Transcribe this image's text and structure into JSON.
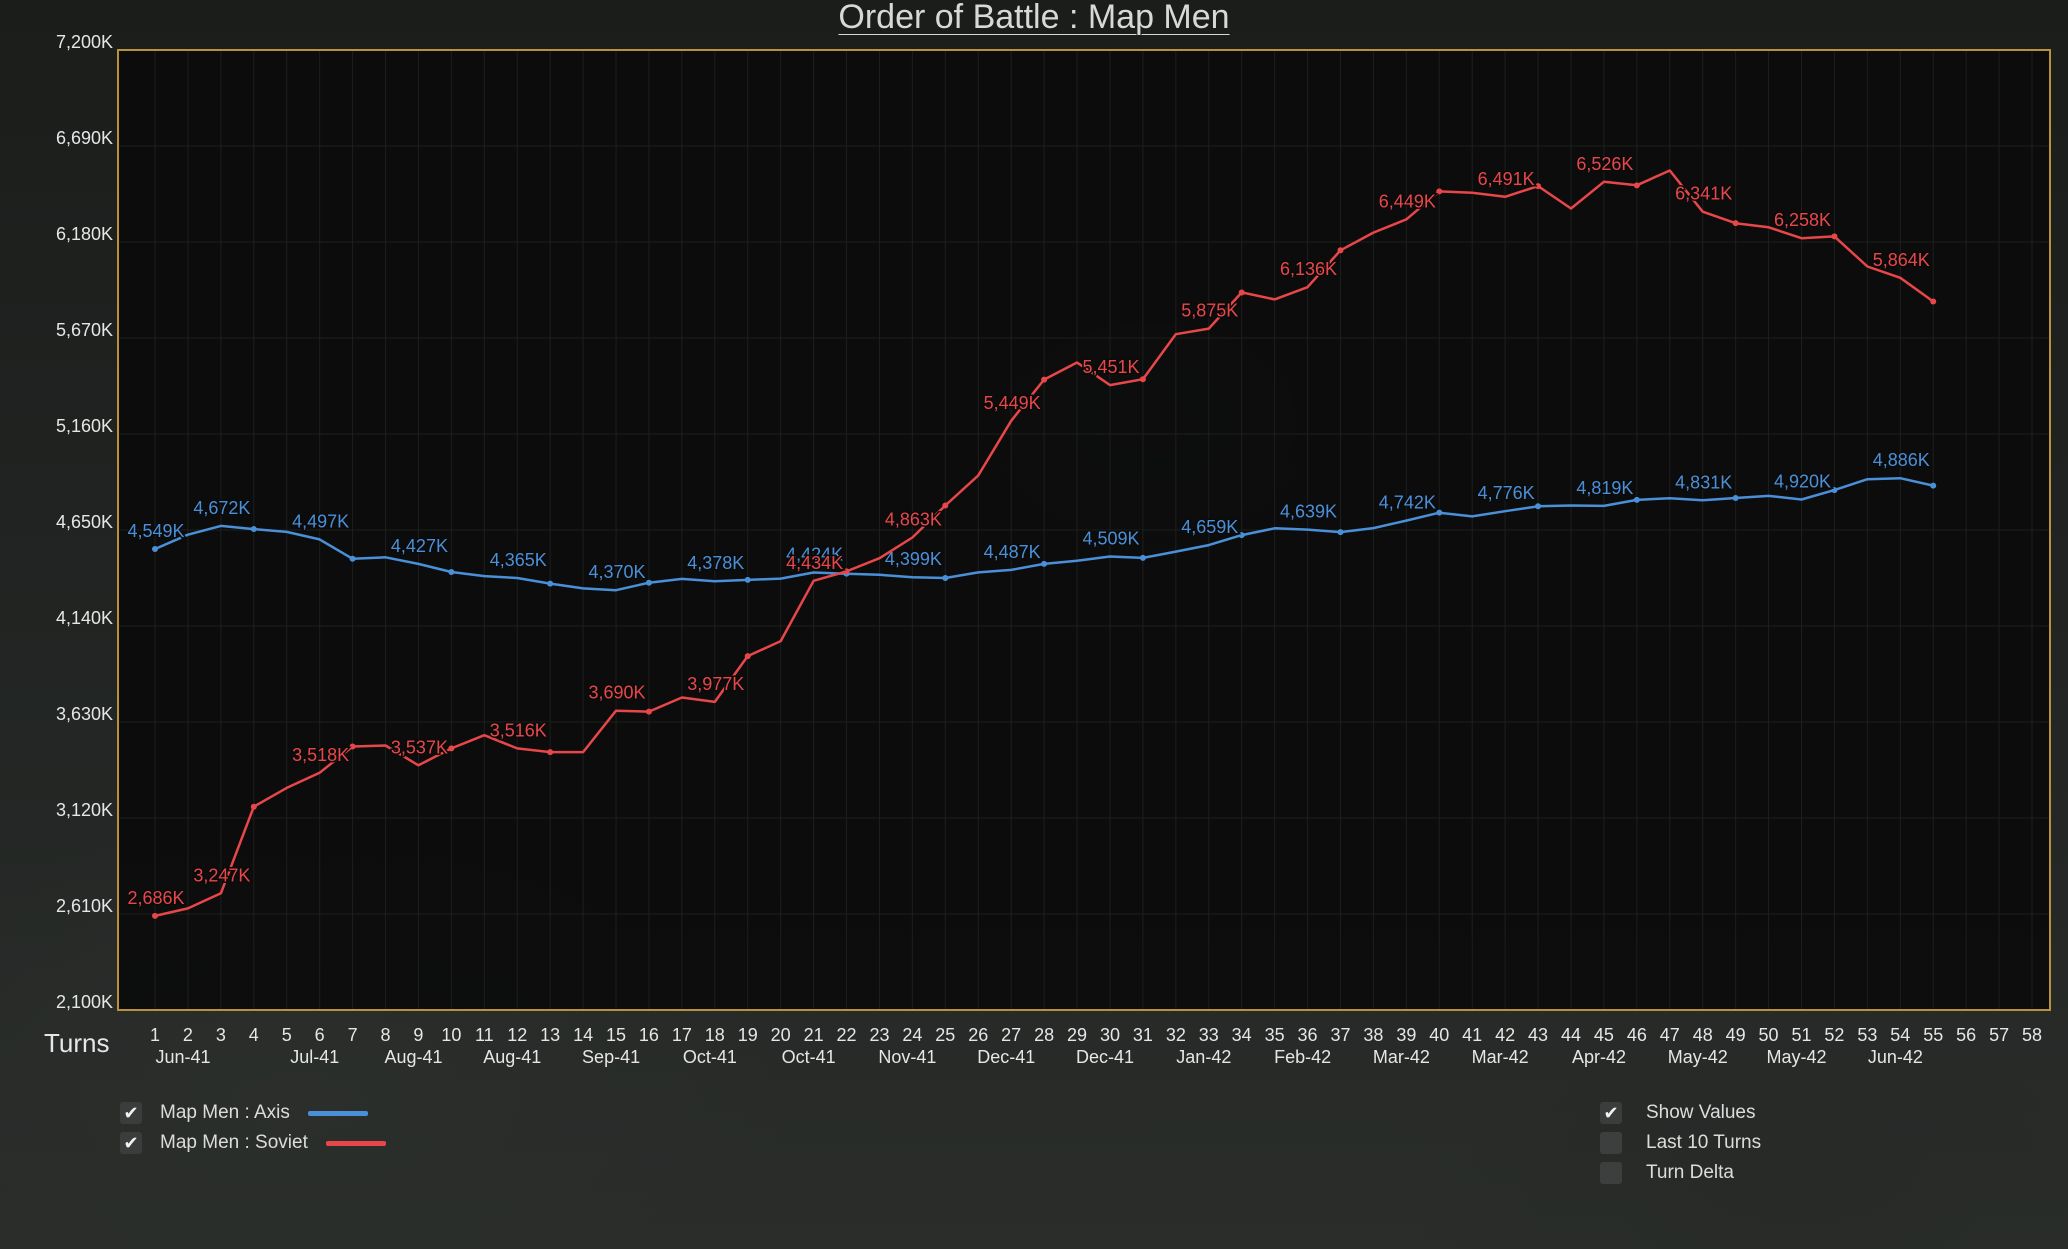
{
  "window": {
    "title": "Order of Battle : Map Men"
  },
  "legend": {
    "items": [
      {
        "label": "Map Men : Axis",
        "checked": true,
        "color": "#4a90d9"
      },
      {
        "label": "Map Men : Soviet",
        "checked": true,
        "color": "#e8474a"
      }
    ]
  },
  "options": {
    "show_values": {
      "label": "Show Values",
      "checked": true
    },
    "last_10_turns": {
      "label": "Last 10 Turns",
      "checked": false
    },
    "turn_delta": {
      "label": "Turn Delta",
      "checked": false
    }
  },
  "chart_data": {
    "type": "line",
    "title": "Order of Battle : Map Men",
    "xlabel": "Turns",
    "ylabel": "",
    "ylim": [
      2100,
      7200
    ],
    "xlim": [
      1,
      58
    ],
    "grid": true,
    "y_ticks": [
      "7,200K",
      "6,690K",
      "6,180K",
      "5,670K",
      "5,160K",
      "4,650K",
      "4,140K",
      "3,630K",
      "3,120K",
      "2,610K",
      "2,100K"
    ],
    "y_tick_values": [
      7200,
      6690,
      6180,
      5670,
      5160,
      4650,
      4140,
      3630,
      3120,
      2610,
      2100
    ],
    "turns": [
      1,
      2,
      3,
      4,
      5,
      6,
      7,
      8,
      9,
      10,
      11,
      12,
      13,
      14,
      15,
      16,
      17,
      18,
      19,
      20,
      21,
      22,
      23,
      24,
      25,
      26,
      27,
      28,
      29,
      30,
      31,
      32,
      33,
      34,
      35,
      36,
      37,
      38,
      39,
      40,
      41,
      42,
      43,
      44,
      45,
      46,
      47,
      48,
      49,
      50,
      51,
      52,
      53,
      54,
      55,
      56,
      57,
      58
    ],
    "dates": [
      {
        "turn": 1,
        "label": "Jun-41"
      },
      {
        "turn": 5,
        "label": "Jul-41"
      },
      {
        "turn": 8,
        "label": "Aug-41"
      },
      {
        "turn": 11,
        "label": "Aug-41"
      },
      {
        "turn": 14,
        "label": "Sep-41"
      },
      {
        "turn": 17,
        "label": "Oct-41"
      },
      {
        "turn": 20,
        "label": "Oct-41"
      },
      {
        "turn": 23,
        "label": "Nov-41"
      },
      {
        "turn": 26,
        "label": "Dec-41"
      },
      {
        "turn": 29,
        "label": "Dec-41"
      },
      {
        "turn": 32,
        "label": "Jan-42"
      },
      {
        "turn": 35,
        "label": "Feb-42"
      },
      {
        "turn": 38,
        "label": "Mar-42"
      },
      {
        "turn": 41,
        "label": "Mar-42"
      },
      {
        "turn": 44,
        "label": "Apr-42"
      },
      {
        "turn": 47,
        "label": "May-42"
      },
      {
        "turn": 50,
        "label": "May-42"
      },
      {
        "turn": 53,
        "label": "Jun-42"
      }
    ],
    "series": [
      {
        "name": "Map Men : Axis",
        "color": "#4a90d9",
        "x": [
          1,
          2,
          3,
          4,
          5,
          6,
          7,
          8,
          9,
          10,
          11,
          12,
          13,
          14,
          15,
          16,
          17,
          18,
          19,
          20,
          21,
          22,
          23,
          24,
          25,
          26,
          27,
          28,
          29,
          30,
          31,
          32,
          33,
          34,
          35,
          36,
          37,
          38,
          39,
          40,
          41,
          42,
          43,
          44,
          45,
          46,
          47,
          48,
          49,
          50,
          51,
          52,
          53,
          54,
          55
        ],
        "values": [
          4549,
          4625,
          4672,
          4655,
          4640,
          4600,
          4497,
          4505,
          4470,
          4427,
          4405,
          4395,
          4365,
          4340,
          4330,
          4370,
          4390,
          4378,
          4385,
          4392,
          4424,
          4418,
          4412,
          4399,
          4395,
          4425,
          4438,
          4470,
          4487,
          4509,
          4502,
          4535,
          4570,
          4623,
          4659,
          4652,
          4639,
          4660,
          4700,
          4742,
          4722,
          4750,
          4776,
          4780,
          4778,
          4810,
          4819,
          4808,
          4820,
          4831,
          4812,
          4862,
          4920,
          4925,
          4886
        ],
        "labels": [
          {
            "x": 1,
            "text": "4,549K"
          },
          {
            "x": 3,
            "text": "4,672K"
          },
          {
            "x": 6,
            "text": "4,497K"
          },
          {
            "x": 9,
            "text": "4,427K"
          },
          {
            "x": 12,
            "text": "4,365K"
          },
          {
            "x": 15,
            "text": "4,370K"
          },
          {
            "x": 18,
            "text": "4,378K"
          },
          {
            "x": 21,
            "text": "4,424K"
          },
          {
            "x": 24,
            "text": "4,399K"
          },
          {
            "x": 27,
            "text": "4,487K"
          },
          {
            "x": 30,
            "text": "4,509K"
          },
          {
            "x": 33,
            "text": "4,659K"
          },
          {
            "x": 36,
            "text": "4,639K"
          },
          {
            "x": 39,
            "text": "4,742K"
          },
          {
            "x": 42,
            "text": "4,776K"
          },
          {
            "x": 45,
            "text": "4,819K"
          },
          {
            "x": 48,
            "text": "4,831K"
          },
          {
            "x": 51,
            "text": "4,920K"
          },
          {
            "x": 54,
            "text": "4,886K"
          }
        ]
      },
      {
        "name": "Map Men : Soviet",
        "color": "#e8474a",
        "x": [
          1,
          2,
          3,
          4,
          5,
          6,
          7,
          8,
          9,
          10,
          11,
          12,
          13,
          14,
          15,
          16,
          17,
          18,
          19,
          20,
          21,
          22,
          23,
          24,
          25,
          26,
          27,
          28,
          29,
          30,
          31,
          32,
          33,
          34,
          35,
          36,
          37,
          38,
          39,
          40,
          41,
          42,
          43,
          44,
          45,
          46,
          47,
          48,
          49,
          50,
          51,
          52,
          53,
          54,
          55
        ],
        "values": [
          2600,
          2640,
          2720,
          3180,
          3280,
          3360,
          3500,
          3505,
          3400,
          3490,
          3560,
          3490,
          3470,
          3470,
          3690,
          3685,
          3760,
          3737,
          3980,
          4060,
          4380,
          4430,
          4500,
          4610,
          4780,
          4940,
          5230,
          5449,
          5540,
          5420,
          5451,
          5690,
          5720,
          5912,
          5875,
          5940,
          6136,
          6230,
          6300,
          6449,
          6442,
          6420,
          6477,
          6358,
          6500,
          6481,
          6560,
          6341,
          6280,
          6258,
          6200,
          6210,
          6050,
          5990,
          5864
        ],
        "labels": [
          {
            "x": 1,
            "text": "2,686K"
          },
          {
            "x": 3,
            "text": "3,247K"
          },
          {
            "x": 6,
            "text": "3,518K"
          },
          {
            "x": 9,
            "text": "3,537K"
          },
          {
            "x": 12,
            "text": "3,516K"
          },
          {
            "x": 15,
            "text": "3,690K"
          },
          {
            "x": 18,
            "text": "3,977K"
          },
          {
            "x": 21,
            "text": "4,434K"
          },
          {
            "x": 24,
            "text": "4,863K"
          },
          {
            "x": 27,
            "text": "5,449K"
          },
          {
            "x": 30,
            "text": "5,451K"
          },
          {
            "x": 33,
            "text": "5,875K"
          },
          {
            "x": 36,
            "text": "6,136K"
          },
          {
            "x": 39,
            "text": "6,449K"
          },
          {
            "x": 42,
            "text": "6,491K"
          },
          {
            "x": 45,
            "text": "6,526K"
          },
          {
            "x": 48,
            "text": "6,341K"
          },
          {
            "x": 51,
            "text": "6,258K"
          },
          {
            "x": 54,
            "text": "5,864K"
          }
        ]
      }
    ]
  }
}
